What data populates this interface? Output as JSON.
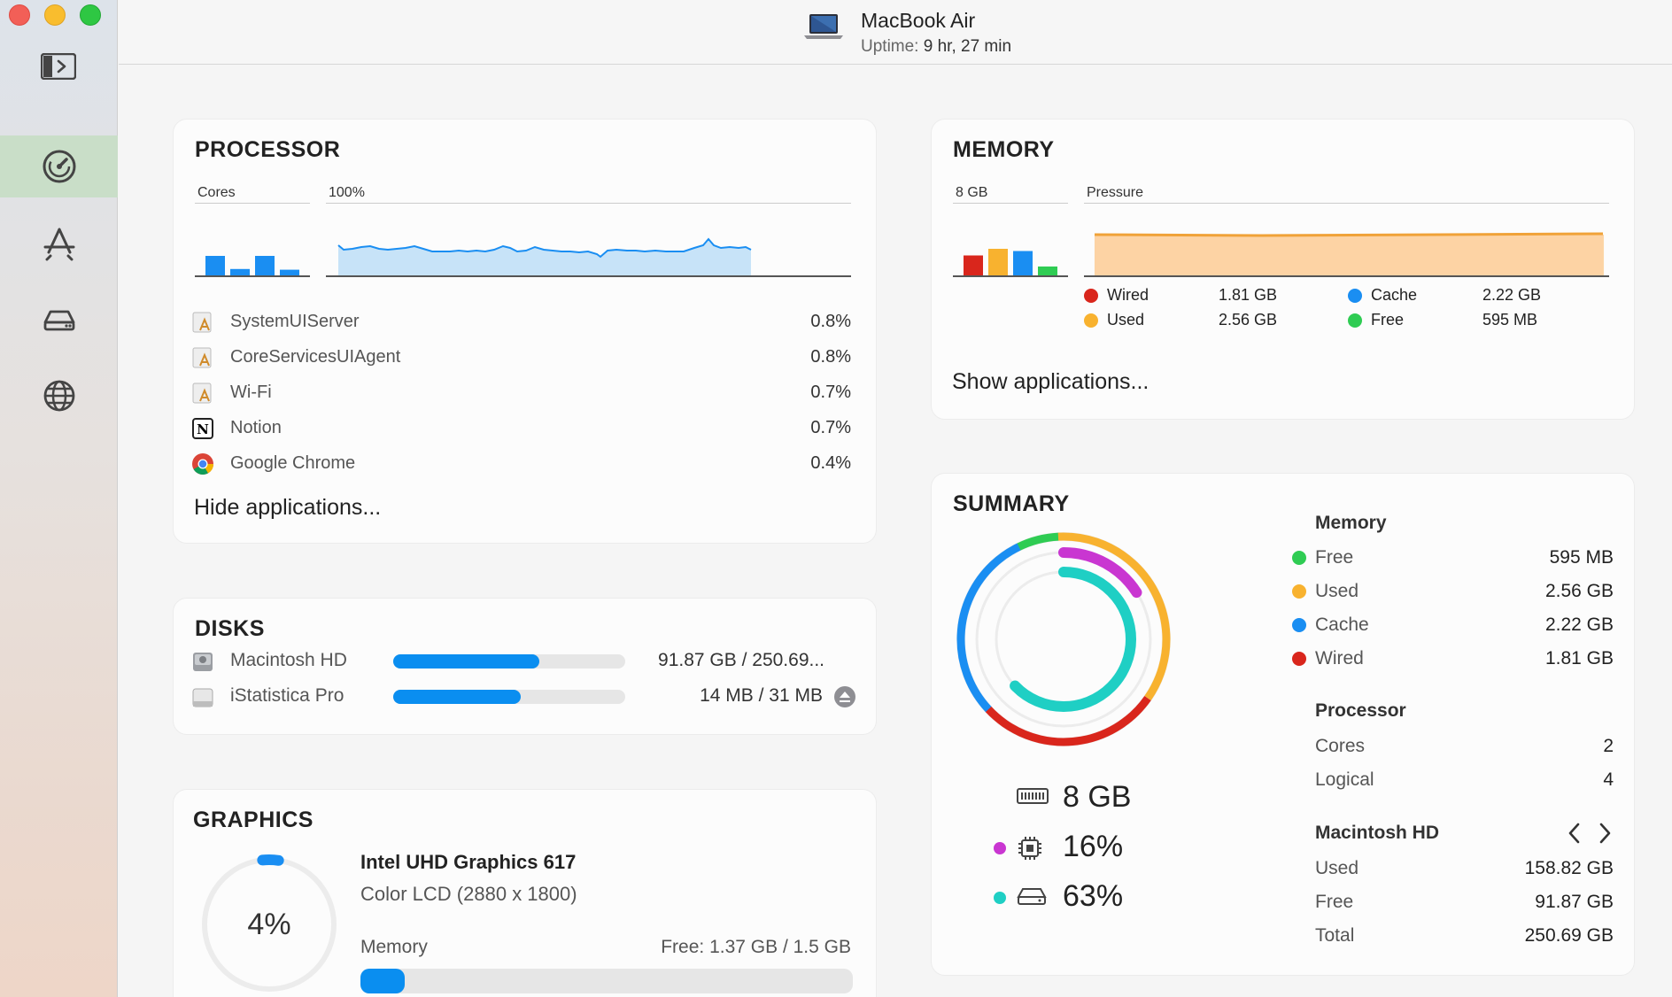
{
  "header": {
    "title": "MacBook Air",
    "uptime_label": "Uptime:",
    "uptime_value": "9 hr, 27 min"
  },
  "sidebar": {
    "items": [
      {
        "name": "dashboard",
        "icon": "gauge-icon",
        "active": true
      },
      {
        "name": "apps",
        "icon": "app-store-icon",
        "active": false
      },
      {
        "name": "disks",
        "icon": "drive-icon",
        "active": false
      },
      {
        "name": "network",
        "icon": "globe-icon",
        "active": false
      }
    ]
  },
  "processor": {
    "title": "PROCESSOR",
    "cores_label": "Cores",
    "history_label": "100%",
    "core_loads": [
      0.55,
      0.18,
      0.55,
      0.16
    ],
    "apps": [
      {
        "name": "SystemUIServer",
        "value": "0.8%"
      },
      {
        "name": "CoreServicesUIAgent",
        "value": "0.8%"
      },
      {
        "name": "Wi-Fi",
        "value": "0.7%"
      },
      {
        "name": "Notion",
        "value": "0.7%"
      },
      {
        "name": "Google Chrome",
        "value": "0.4%"
      }
    ],
    "toggle_label": "Hide applications..."
  },
  "memory": {
    "title": "MEMORY",
    "total_label": "8 GB",
    "pressure_label": "Pressure",
    "bars": [
      0.45,
      0.6,
      0.55,
      0.2
    ],
    "legend": [
      {
        "label": "Wired",
        "value": "1.81 GB",
        "color": "#d9261c"
      },
      {
        "label": "Used",
        "value": "2.56 GB",
        "color": "#f8b22f"
      },
      {
        "label": "Cache",
        "value": "2.22 GB",
        "color": "#1a8ef2"
      },
      {
        "label": "Free",
        "value": "595 MB",
        "color": "#2fcc53"
      }
    ],
    "toggle_label": "Show applications..."
  },
  "disks": {
    "title": "DISKS",
    "items": [
      {
        "name": "Macintosh HD",
        "value": "91.87 GB / 250.69...",
        "fill": 0.63
      },
      {
        "name": "iStatistica Pro",
        "value": "14 MB / 31 MB",
        "fill": 0.55
      }
    ]
  },
  "graphics": {
    "title": "GRAPHICS",
    "percent": "4%",
    "gpu_name": "Intel UHD Graphics 617",
    "display": "Color LCD (2880 x 1800)",
    "memory_label": "Memory",
    "memory_value": "Free: 1.37 GB / 1.5 GB",
    "memory_fill": 0.09
  },
  "summary": {
    "title": "SUMMARY",
    "stats": [
      {
        "icon": "ram-icon",
        "value": "8 GB",
        "dot": ""
      },
      {
        "icon": "cpu-icon",
        "value": "16%",
        "dot": "#c936d1"
      },
      {
        "icon": "disk-icon",
        "value": "63%",
        "dot": "#1fcfc4"
      }
    ],
    "memory_head": "Memory",
    "memory": [
      {
        "label": "Free",
        "value": "595 MB",
        "color": "#2fcc53"
      },
      {
        "label": "Used",
        "value": "2.56 GB",
        "color": "#f8b22f"
      },
      {
        "label": "Cache",
        "value": "2.22 GB",
        "color": "#1a8ef2"
      },
      {
        "label": "Wired",
        "value": "1.81 GB",
        "color": "#d9261c"
      }
    ],
    "processor_head": "Processor",
    "processor": [
      {
        "label": "Cores",
        "value": "2"
      },
      {
        "label": "Logical",
        "value": "4"
      }
    ],
    "disk_head": "Macintosh HD",
    "disk": [
      {
        "label": "Used",
        "value": "158.82 GB"
      },
      {
        "label": "Free",
        "value": "91.87 GB"
      },
      {
        "label": "Total",
        "value": "250.69 GB"
      }
    ]
  }
}
